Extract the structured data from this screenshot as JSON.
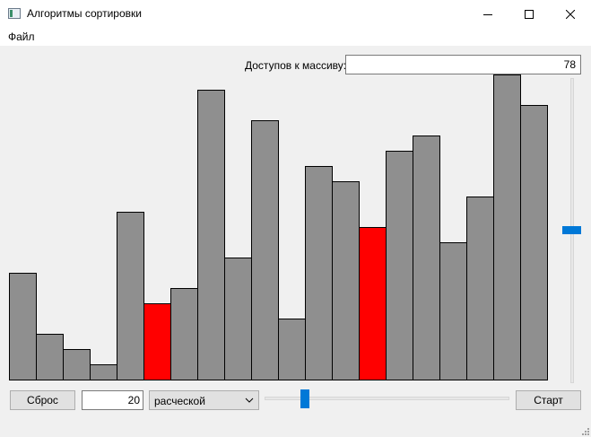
{
  "window": {
    "title": "Алгоритмы сортировки",
    "icon": "app-window-icon",
    "controls": [
      "minimize-icon",
      "maximize-icon",
      "close-icon"
    ]
  },
  "menu": {
    "file": "Файл"
  },
  "access": {
    "label": "Доступов к массиву:",
    "value": "78"
  },
  "controls": {
    "reset_label": "Сброс",
    "size_value": "20",
    "algorithm": "расческой",
    "start_label": "Старт",
    "speed_slider_fraction": 0.15,
    "vertical_slider_fraction": 0.5
  },
  "colors": {
    "bar": "#8f8f8f",
    "highlight": "#ff0000",
    "accent": "#0078d7"
  },
  "chart_data": {
    "type": "bar",
    "title": "",
    "xlabel": "",
    "ylabel": "",
    "ylim": [
      0,
      20
    ],
    "values": [
      7,
      3,
      2,
      1,
      11,
      5,
      6,
      19,
      8,
      17,
      4,
      14,
      13,
      10,
      15,
      16,
      9,
      12,
      20,
      18
    ],
    "highlighted": [
      5,
      13
    ]
  }
}
